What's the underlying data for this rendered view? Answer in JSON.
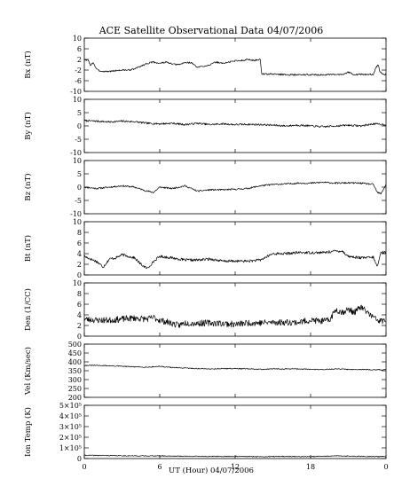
{
  "title": "ACE Satellite Observational Data   04/07/2006",
  "x_axis": {
    "label": "UT (Hour)  04/07/2006",
    "tick_labels": [
      "0",
      "6",
      "12",
      "18",
      "0"
    ]
  },
  "chart_data": [
    {
      "type": "line",
      "ylabel": "Bx (nT)",
      "ylim": [
        -10,
        10
      ],
      "ytick_labels": [
        "10",
        "6",
        "2",
        "-2",
        "-6",
        "-10"
      ],
      "ytick_values": [
        10,
        6,
        2,
        -2,
        -6,
        -10
      ],
      "noise": 0.3,
      "seed": 3,
      "series": [
        {
          "x": [
            0,
            0.1,
            0.3,
            0.5,
            0.7,
            0.9,
            1.1,
            1.5,
            2,
            2.5,
            3,
            3.5,
            4,
            4.5,
            5,
            5.5,
            6,
            6.5,
            7,
            7.5,
            8,
            8.5,
            9,
            9.5,
            10,
            10.5,
            11,
            11.5,
            12,
            12.5,
            13,
            13.5,
            14,
            14.1,
            14.3,
            15,
            16,
            17,
            18,
            19,
            20,
            20.5,
            21,
            21.5,
            22,
            22.5,
            23,
            23.2,
            23.4,
            23.5,
            23.7,
            24
          ],
          "y": [
            2,
            1.5,
            2,
            -0.5,
            1,
            -1,
            -2.2,
            -2.5,
            -2.5,
            -2.2,
            -2,
            -2,
            -1.6,
            -0.5,
            0.5,
            1,
            0.5,
            1,
            0.2,
            0,
            0.8,
            0.8,
            -1,
            -0.5,
            0,
            1,
            0.5,
            1,
            1.5,
            1.6,
            2,
            1.6,
            2,
            -3.3,
            -3.5,
            -3.5,
            -3.7,
            -3.8,
            -3.7,
            -3.8,
            -3.7,
            -3.6,
            -2.8,
            -3.7,
            -3.6,
            -3.7,
            -3.6,
            -1,
            0,
            -2.5,
            -3.5,
            -3.6
          ]
        }
      ]
    },
    {
      "type": "line",
      "ylabel": "By (nT)",
      "ylim": [
        -10,
        10
      ],
      "ytick_labels": [
        "10",
        "5",
        "0",
        "-5",
        "-10"
      ],
      "ytick_values": [
        10,
        5,
        0,
        -5,
        -10
      ],
      "noise": 0.35,
      "seed": 7,
      "series": [
        {
          "x": [
            0,
            1,
            2,
            3,
            4,
            5,
            6,
            7,
            8,
            9,
            10,
            11,
            12,
            13,
            14,
            15,
            16,
            17,
            18,
            19,
            20,
            21,
            22,
            23,
            24
          ],
          "y": [
            2,
            1.8,
            1.5,
            1.8,
            1.6,
            1,
            0.8,
            1,
            0.5,
            1,
            0.5,
            0.8,
            0.5,
            0.6,
            0.5,
            0.3,
            0,
            0.3,
            0,
            -0.3,
            0,
            0.3,
            0,
            0.8,
            0.5
          ]
        }
      ]
    },
    {
      "type": "line",
      "ylabel": "Bz (nT)",
      "ylim": [
        -10,
        10
      ],
      "ytick_labels": [
        "10",
        "5",
        "0",
        "-5",
        "-10"
      ],
      "ytick_values": [
        10,
        5,
        0,
        -5,
        -10
      ],
      "noise": 0.3,
      "seed": 11,
      "series": [
        {
          "x": [
            0,
            1,
            2,
            3,
            4,
            5,
            5.5,
            6,
            7,
            8,
            9,
            10,
            11,
            12,
            13,
            14,
            15,
            16,
            17,
            18,
            19,
            20,
            21,
            22,
            23,
            23.3,
            23.6,
            24
          ],
          "y": [
            0,
            -0.5,
            0,
            0.5,
            0,
            -1.5,
            -2,
            0,
            -0.5,
            0.5,
            -1.5,
            -1,
            -1,
            -0.8,
            -0.5,
            0.5,
            1,
            1.2,
            1.5,
            1.5,
            1.8,
            1.5,
            1.6,
            1.5,
            1,
            -2,
            -2.5,
            1
          ]
        }
      ]
    },
    {
      "type": "line",
      "ylabel": "Bt (nT)",
      "ylim": [
        0,
        10
      ],
      "ytick_labels": [
        "10",
        "8",
        "6",
        "4",
        "2",
        "0"
      ],
      "ytick_values": [
        10,
        8,
        6,
        4,
        2,
        0
      ],
      "noise": 0.25,
      "seed": 17,
      "series": [
        {
          "x": [
            0,
            0.5,
            1,
            1.5,
            2,
            2.5,
            3,
            3.5,
            4,
            4.5,
            5,
            5.5,
            6,
            7,
            8,
            9,
            10,
            11,
            12,
            13,
            14,
            15,
            16,
            17,
            18,
            19,
            20,
            20.5,
            21,
            22,
            23,
            23.3,
            23.6,
            24
          ],
          "y": [
            3.5,
            3,
            2.5,
            1.5,
            3,
            3.2,
            3.8,
            3.5,
            3.2,
            2,
            1.2,
            2.5,
            3.5,
            3.2,
            2.8,
            2.8,
            3,
            2.6,
            2.6,
            2.6,
            2.8,
            4,
            4,
            4.2,
            4.2,
            4.2,
            4.5,
            4.5,
            3.5,
            3.2,
            3.3,
            1.5,
            4.3,
            4.2
          ]
        }
      ]
    },
    {
      "type": "line",
      "ylabel": "Den (1/CC)",
      "ylim": [
        0,
        10
      ],
      "ytick_labels": [
        "10",
        "8",
        "6",
        "4",
        "2",
        "0"
      ],
      "ytick_values": [
        10,
        8,
        6,
        4,
        2,
        0
      ],
      "noise": 0.6,
      "seed": 23,
      "series": [
        {
          "x": [
            0,
            1,
            2,
            3,
            4,
            5,
            5.5,
            6,
            7,
            7.5,
            8,
            9,
            10,
            11,
            12,
            13,
            14,
            15,
            16,
            17,
            18,
            19,
            19.5,
            20,
            20.5,
            21,
            21.5,
            22,
            23,
            23.5,
            24
          ],
          "y": [
            3.2,
            3,
            3,
            3.2,
            3.4,
            3.2,
            3.5,
            3,
            2.4,
            2,
            2.5,
            2.4,
            2.5,
            2.4,
            2.2,
            2.5,
            2.5,
            2.6,
            2.6,
            2.6,
            3,
            2.8,
            3,
            5,
            4.5,
            5,
            4.5,
            5.5,
            3.5,
            2.8,
            3
          ]
        }
      ]
    },
    {
      "type": "line",
      "ylabel": "Vel (Km/sec)",
      "ylim": [
        200,
        500
      ],
      "ytick_labels": [
        "500",
        "450",
        "400",
        "350",
        "300",
        "250",
        "200"
      ],
      "ytick_values": [
        500,
        450,
        400,
        350,
        300,
        250,
        200
      ],
      "noise": 2.5,
      "seed": 31,
      "series": [
        {
          "x": [
            0,
            1,
            2,
            3,
            4,
            5,
            6,
            7,
            8,
            9,
            10,
            11,
            12,
            13,
            14,
            15,
            16,
            17,
            18,
            19,
            20,
            21,
            22,
            23,
            24
          ],
          "y": [
            380,
            380,
            378,
            375,
            372,
            370,
            375,
            368,
            365,
            362,
            360,
            362,
            362,
            360,
            358,
            360,
            360,
            360,
            358,
            357,
            360,
            358,
            357,
            356,
            355
          ]
        }
      ]
    },
    {
      "type": "line",
      "ylabel": "Ion Temp (K)",
      "ylim": [
        0,
        500000
      ],
      "ytick_labels": [
        "5×10⁵",
        "4×10⁵",
        "3×10⁵",
        "2×10⁵",
        "1×10⁵",
        "0"
      ],
      "ytick_values": [
        500000,
        400000,
        300000,
        200000,
        100000,
        0
      ],
      "noise": 4000,
      "seed": 41,
      "series": [
        {
          "x": [
            0,
            2,
            4,
            6,
            8,
            10,
            12,
            14,
            16,
            18,
            20,
            22,
            24
          ],
          "y": [
            30000,
            28000,
            25000,
            25000,
            22000,
            20000,
            20000,
            18000,
            20000,
            18000,
            25000,
            20000,
            18000
          ]
        }
      ]
    }
  ]
}
